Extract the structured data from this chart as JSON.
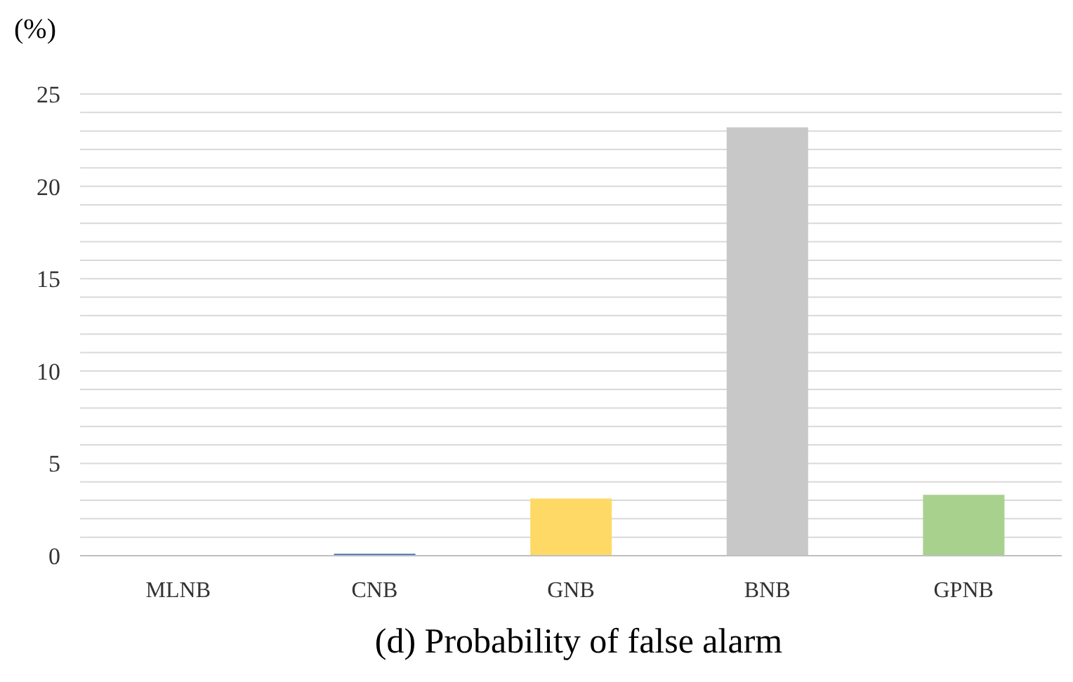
{
  "chart_data": {
    "type": "bar",
    "title": "(d) Probability of false alarm",
    "ylabel": "(%)",
    "categories": [
      "MLNB",
      "CNB",
      "GNB",
      "BNB",
      "GPNB"
    ],
    "values": [
      0,
      0.1,
      3.1,
      23.2,
      3.3
    ],
    "colors": [
      "#ed7d31",
      "#4472c4",
      "#ffd966",
      "#c8c8c8",
      "#a9d18e"
    ],
    "ylim": [
      0,
      25
    ],
    "yticks": [
      0,
      {
        "value": 1,
        "label": null
      },
      {
        "value": 2,
        "label": null
      },
      {
        "value": 3,
        "label": null
      },
      {
        "value": 4,
        "label": null
      },
      5,
      {
        "value": 6,
        "label": null
      },
      {
        "value": 7,
        "label": null
      },
      {
        "value": 8,
        "label": null
      },
      {
        "value": 9,
        "label": null
      },
      10,
      {
        "value": 11,
        "label": null
      },
      {
        "value": 12,
        "label": null
      },
      {
        "value": 13,
        "label": null
      },
      {
        "value": 14,
        "label": null
      },
      15,
      {
        "value": 16,
        "label": null
      },
      {
        "value": 17,
        "label": null
      },
      {
        "value": 18,
        "label": null
      },
      {
        "value": 19,
        "label": null
      },
      20,
      {
        "value": 21,
        "label": null
      },
      {
        "value": 22,
        "label": null
      },
      {
        "value": 23,
        "label": null
      },
      {
        "value": 24,
        "label": null
      },
      25
    ],
    "grid": "y",
    "legend": false
  }
}
